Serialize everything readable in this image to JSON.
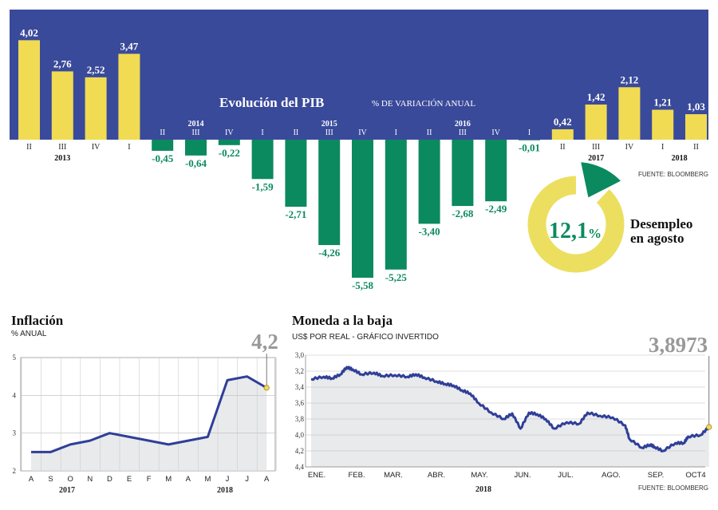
{
  "colors": {
    "band": "#3a4a9a",
    "band_light": "#4a5aa8",
    "positive": "#f0db53",
    "negative": "#0b8a5f",
    "line": "#2f3f98",
    "fill": "#e9eaec",
    "ring": "#ecdf5f",
    "source": "#333333"
  },
  "gdp": {
    "title": "Evolución del PIB",
    "subtitle": "% DE VARIACIÓN ANUAL",
    "source": "FUENTE: BLOOMBERG",
    "years": [
      "2013",
      "2014",
      "2015",
      "2016",
      "2017",
      "2018"
    ]
  },
  "unemployment": {
    "value": "12,1",
    "unit": "%",
    "label_line1": "Desempleo",
    "label_line2": "en agosto",
    "fraction": 0.121
  },
  "inflation": {
    "title": "Inflación",
    "subtitle": "% ANUAL",
    "last_value": "4,2",
    "year_labels": [
      "2017",
      "2018"
    ]
  },
  "currency": {
    "title": "Moneda a la baja",
    "subtitle": "US$ POR REAL - GRÁFICO INVERTIDO",
    "last_value": "3,8973",
    "year_label": "2018",
    "source": "FUENTE: BLOOMBERG"
  },
  "chart_data": [
    {
      "type": "bar",
      "title": "Evolución del PIB",
      "subtitle": "% DE VARIACIÓN ANUAL",
      "categories": [
        "II",
        "III",
        "IV",
        "I",
        "II",
        "III",
        "IV",
        "I",
        "II",
        "III",
        "IV",
        "I",
        "II",
        "III",
        "IV",
        "I",
        "II",
        "III",
        "IV",
        "I",
        "II"
      ],
      "years": [
        "2013",
        "2013",
        "2013",
        "2014",
        "2014",
        "2014",
        "2014",
        "2015",
        "2015",
        "2015",
        "2015",
        "2016",
        "2016",
        "2016",
        "2016",
        "2017",
        "2017",
        "2017",
        "2017",
        "2018",
        "2018"
      ],
      "values": [
        4.02,
        2.76,
        2.52,
        3.47,
        -0.45,
        -0.64,
        -0.22,
        -1.59,
        -2.71,
        -4.26,
        -5.58,
        -5.25,
        -3.4,
        -2.68,
        -2.49,
        -0.01,
        0.42,
        1.42,
        2.12,
        1.21,
        1.03
      ],
      "value_labels": [
        "4,02",
        "2,76",
        "2,52",
        "3,47",
        "-0,45",
        "-0,64",
        "-0,22",
        "-1,59",
        "-2,71",
        "-4,26",
        "-5,58",
        "-5,25",
        "-3,40",
        "-2,68",
        "-2,49",
        "-0,01",
        "0,42",
        "1,42",
        "2,12",
        "1,21",
        "1,03"
      ]
    },
    {
      "type": "pie",
      "title": "Desempleo en agosto",
      "values": [
        12.1,
        87.9
      ],
      "labels": [
        "12,1%",
        ""
      ]
    },
    {
      "type": "area",
      "title": "Inflación",
      "ylabel": "% ANUAL",
      "categories": [
        "A",
        "S",
        "O",
        "N",
        "D",
        "E",
        "F",
        "M",
        "A",
        "M",
        "J",
        "J",
        "A"
      ],
      "values": [
        2.5,
        2.5,
        2.7,
        2.8,
        3.0,
        2.9,
        2.8,
        2.7,
        2.8,
        2.9,
        4.4,
        4.5,
        4.2
      ],
      "yticks": [
        "2",
        "3",
        "4",
        "5"
      ],
      "ylim": [
        2,
        5
      ],
      "grid": true
    },
    {
      "type": "area",
      "title": "Moneda a la baja",
      "ylabel": "US$ POR REAL - GRÁFICO INVERTIDO",
      "inverted_y": true,
      "ylim": [
        3.0,
        4.4
      ],
      "yticks": [
        "3,0",
        "3,2",
        "3,4",
        "3,6",
        "3,8",
        "4,0",
        "4,2",
        "4,4"
      ],
      "xticks": [
        "ENE.",
        "FEB.",
        "MAR.",
        "ABR.",
        "MAY.",
        "JUN.",
        "JUL.",
        "AGO.",
        "SEP.",
        "OCT4"
      ],
      "x": [
        0,
        0.3,
        0.5,
        0.7,
        0.85,
        1.0,
        1.2,
        1.5,
        1.7,
        2.0,
        2.3,
        2.5,
        2.7,
        3.0,
        3.2,
        3.4,
        3.6,
        3.8,
        4.0,
        4.3,
        4.6,
        4.8,
        5.0,
        5.2,
        5.4,
        5.6,
        5.8,
        6.1,
        6.4,
        6.6,
        6.9,
        7.2,
        7.5,
        7.6,
        7.9,
        8.1,
        8.2,
        8.4,
        8.7,
        8.9,
        9.0,
        9.3,
        9.5
      ],
      "values": [
        3.3,
        3.27,
        3.29,
        3.24,
        3.15,
        3.18,
        3.24,
        3.22,
        3.26,
        3.25,
        3.27,
        3.24,
        3.28,
        3.33,
        3.36,
        3.38,
        3.44,
        3.48,
        3.6,
        3.72,
        3.8,
        3.73,
        3.92,
        3.72,
        3.74,
        3.8,
        3.92,
        3.84,
        3.86,
        3.72,
        3.76,
        3.78,
        3.88,
        4.05,
        4.16,
        4.12,
        4.15,
        4.2,
        4.1,
        4.1,
        4.02,
        4.0,
        3.9
      ],
      "grid": true
    }
  ]
}
